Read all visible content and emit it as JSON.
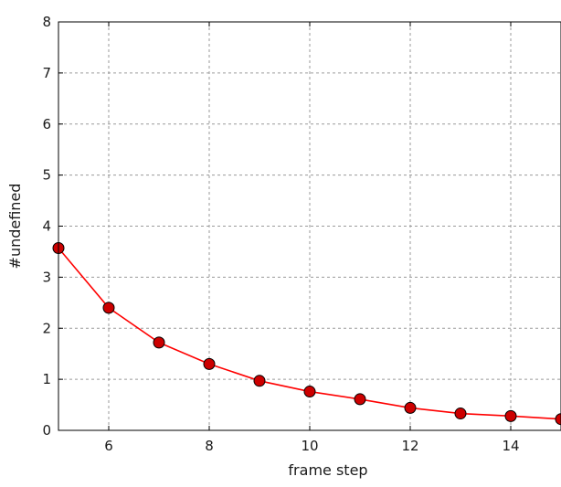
{
  "chart_data": {
    "type": "line",
    "title": "",
    "xlabel": "frame step",
    "ylabel": "#undefined",
    "xlim": [
      5,
      15
    ],
    "ylim": [
      0,
      8
    ],
    "x_ticks": [
      6,
      8,
      10,
      12,
      14
    ],
    "y_ticks": [
      0,
      1,
      2,
      3,
      4,
      5,
      6,
      7,
      8
    ],
    "grid": true,
    "legend": "none",
    "series": [
      {
        "color": "#ff0000",
        "marker_color": "#cc0000",
        "x": [
          5,
          6,
          7,
          8,
          9,
          10,
          11,
          12,
          13,
          14,
          15
        ],
        "values": [
          3.57,
          2.4,
          1.72,
          1.3,
          0.97,
          0.76,
          0.61,
          0.44,
          0.33,
          0.28,
          0.22
        ]
      }
    ]
  }
}
